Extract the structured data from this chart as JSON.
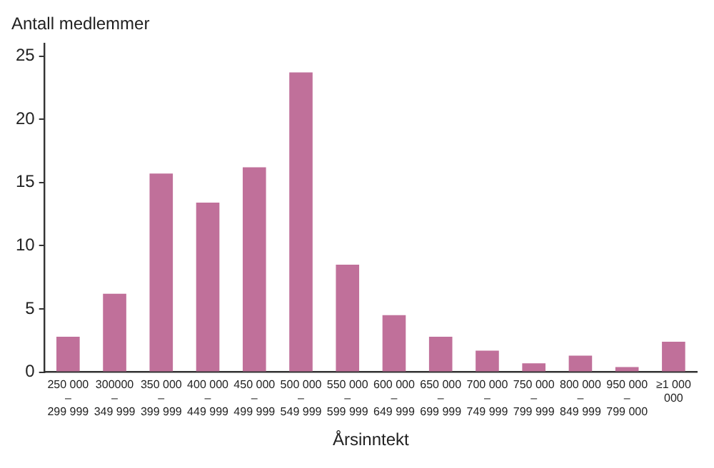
{
  "chart_data": {
    "type": "bar",
    "ylabel": "Antall medlemmer",
    "xlabel": "Årsinntekt",
    "categories": [
      "250 000\n–\n299 999",
      "300000\n–\n349 999",
      "350 000\n–\n399 999",
      "400 000\n–\n449 999",
      "450 000\n–\n499 999",
      "500 000\n–\n549 999",
      "550 000\n–\n599 999",
      "600 000\n–\n649 999",
      "650 000\n–\n699 999",
      "700 000\n–\n749 999",
      "750 000\n–\n799 999",
      "800 000\n–\n849 999",
      "950 000\n–\n799 000",
      "≥1 000\n000"
    ],
    "values": [
      2.8,
      6.2,
      15.7,
      13.4,
      16.2,
      23.7,
      8.5,
      4.5,
      2.8,
      1.7,
      0.7,
      1.3,
      0.4,
      2.4
    ],
    "color": "#c0709a",
    "ylim": [
      0,
      26
    ],
    "yticks": [
      0,
      5,
      10,
      15,
      20,
      25
    ],
    "grid": false,
    "legend": false
  }
}
